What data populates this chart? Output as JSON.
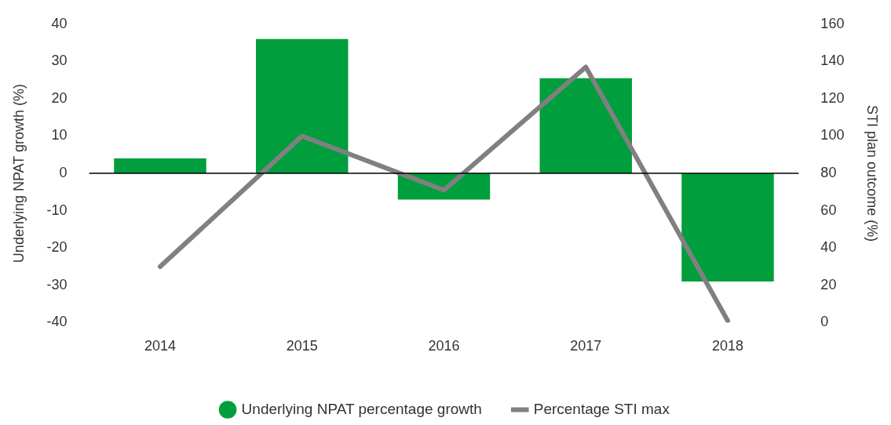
{
  "chart_data": {
    "type": "bar",
    "xlabel": null,
    "ylabel": "Underlying NPAT growth (%)",
    "y2label": "STI plan outcome (%)",
    "categories": [
      "2014",
      "2015",
      "2016",
      "2017",
      "2018"
    ],
    "series": [
      {
        "name": "Underlying NPAT percentage growth",
        "color": "#009e3d",
        "values": [
          4,
          36,
          -7,
          25.5,
          -29
        ]
      },
      {
        "name": "Percentage STI max",
        "type": "line",
        "axis": "y2",
        "color": "#808080",
        "values": [
          30,
          100,
          71,
          137,
          1
        ]
      }
    ],
    "ylim": [
      -40,
      40
    ],
    "yticks": [
      -40,
      -30,
      -20,
      -10,
      0,
      10,
      20,
      30,
      40
    ],
    "y2lim": [
      0,
      160
    ],
    "y2ticks": [
      0,
      20,
      40,
      60,
      80,
      100,
      120,
      140,
      160
    ],
    "ref_lines": [
      {
        "axis": "y",
        "value": 0,
        "color": "#000000"
      }
    ],
    "grid": false,
    "legend": "bottom",
    "marker": "none"
  }
}
